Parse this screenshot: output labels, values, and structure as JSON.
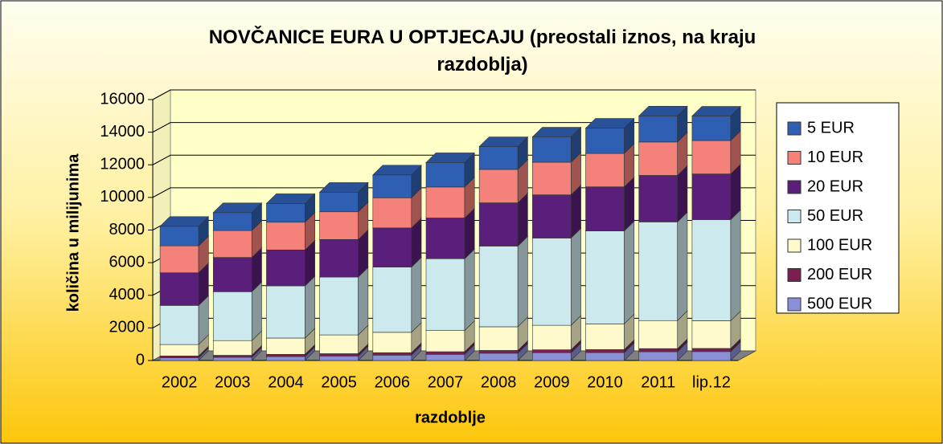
{
  "chart_data": {
    "type": "bar3d_stacked",
    "title": "NOVČANICE EURA U OPTJECAJU (preostali iznos, na kraju razdoblja)",
    "x_label": "razdoblje",
    "y_label": "količina u milijunima",
    "categories": [
      "2002",
      "2003",
      "2004",
      "2005",
      "2006",
      "2007",
      "2008",
      "2009",
      "2010",
      "2011",
      "lip.12"
    ],
    "series": [
      {
        "name": "500 EUR",
        "color": "#8a8fd6",
        "values": [
          170,
          200,
          250,
          280,
          330,
          380,
          450,
          480,
          490,
          540,
          550
        ]
      },
      {
        "name": "200 EUR",
        "color": "#7a1f4f",
        "values": [
          110,
          120,
          130,
          140,
          150,
          160,
          170,
          180,
          180,
          190,
          190
        ]
      },
      {
        "name": "100 EUR",
        "color": "#fffacc",
        "values": [
          700,
          900,
          1000,
          1150,
          1250,
          1300,
          1450,
          1500,
          1580,
          1720,
          1700
        ]
      },
      {
        "name": "50 EUR",
        "color": "#cce9ee",
        "values": [
          2400,
          3000,
          3200,
          3550,
          4000,
          4400,
          4950,
          5350,
          5700,
          6050,
          6200
        ]
      },
      {
        "name": "20 EUR",
        "color": "#5a1f7a",
        "values": [
          2000,
          2100,
          2200,
          2300,
          2400,
          2500,
          2650,
          2650,
          2700,
          2850,
          2800
        ]
      },
      {
        "name": "10 EUR",
        "color": "#f4817a",
        "values": [
          1650,
          1650,
          1700,
          1700,
          1850,
          1900,
          2050,
          2000,
          2050,
          2050,
          2050
        ]
      },
      {
        "name": "5 EUR",
        "color": "#2f5fb3",
        "values": [
          1200,
          1100,
          1150,
          1200,
          1400,
          1500,
          1400,
          1550,
          1550,
          1600,
          1500
        ]
      }
    ],
    "ylim": [
      0,
      16000
    ],
    "yticks": [
      0,
      2000,
      4000,
      6000,
      8000,
      10000,
      12000,
      14000,
      16000
    ],
    "grid": true
  }
}
